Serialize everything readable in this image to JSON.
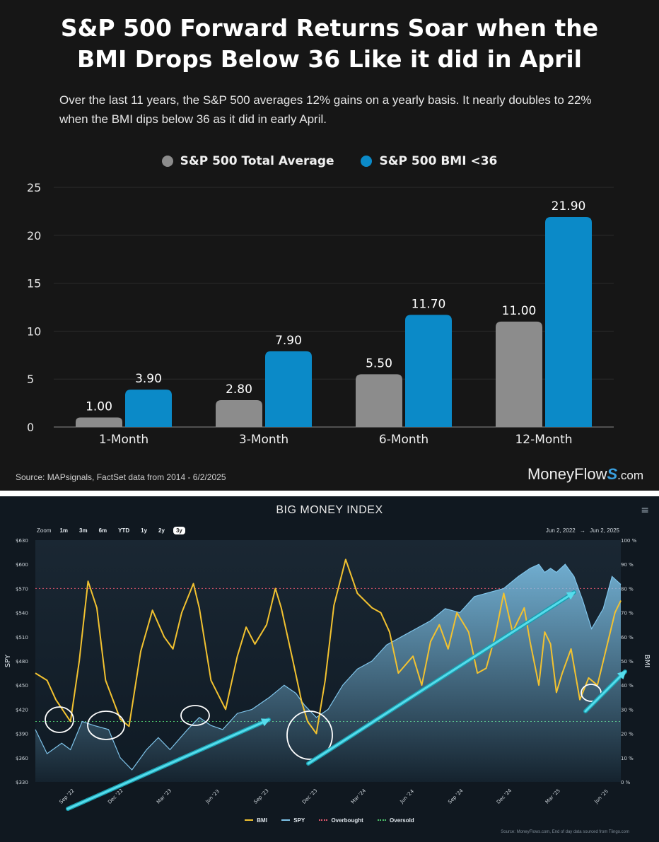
{
  "panel1": {
    "title_line1": "S&P 500 Forward Returns Soar when the",
    "title_line2": "BMI Drops Below 36 Like it did in April",
    "subtitle": "Over the last 11 years, the S&P 500 averages 12% gains on a yearly basis. It nearly doubles to 22% when the BMI dips below 36 as it did in early April.",
    "source": "Source: MAPsignals, FactSet data from 2014 - 6/2/2025",
    "brand_main": "MoneyFlow",
    "brand_s": "S",
    "brand_suffix": ".com",
    "colors": {
      "total_average": "#8c8c8c",
      "bmi": "#0b8ac8"
    }
  },
  "chart_data": [
    {
      "type": "bar",
      "categories": [
        "1-Month",
        "3-Month",
        "6-Month",
        "12-Month"
      ],
      "series": [
        {
          "name": "S&P 500 Total Average",
          "values": [
            1.0,
            2.8,
            5.5,
            11.0
          ]
        },
        {
          "name": "S&P 500 BMI <36",
          "values": [
            3.9,
            7.9,
            11.7,
            21.9
          ]
        }
      ],
      "ylim": [
        0,
        25
      ],
      "yticks": [
        0,
        5,
        10,
        15,
        20,
        25
      ],
      "data_labels": [
        [
          "1.00",
          "2.80",
          "5.50",
          "11.00"
        ],
        [
          "3.90",
          "7.90",
          "11.70",
          "21.90"
        ]
      ],
      "grid": true,
      "legend": "top-center"
    },
    {
      "type": "line",
      "title": "BIG MONEY INDEX",
      "x_range": [
        "Jun 2, 2022",
        "Jun 2, 2025"
      ],
      "xticks": [
        "Sep '22",
        "Dec '22",
        "Mar '23",
        "Jun '23",
        "Sep '23",
        "Dec '23",
        "Mar '24",
        "Jun '24",
        "Sep '24",
        "Dec '24",
        "Mar '25",
        "Jun '25"
      ],
      "ylabel_left": "SPY",
      "ylabel_right": "BMI",
      "ylim_left": [
        330,
        630
      ],
      "yticks_left": [
        "$330",
        "$360",
        "$390",
        "$420",
        "$450",
        "$480",
        "$510",
        "$540",
        "$570",
        "$600",
        "$630"
      ],
      "ylim_right": [
        0,
        100
      ],
      "yticks_right": [
        "0 %",
        "10 %",
        "20 %",
        "30 %",
        "40 %",
        "50 %",
        "60 %",
        "70 %",
        "80 %",
        "90 %",
        "100 %"
      ],
      "overbought_level": 80,
      "oversold_level": 25,
      "series": [
        {
          "name": "BMI",
          "color": "#f2c230",
          "t": [
            0,
            0.02,
            0.035,
            0.06,
            0.075,
            0.09,
            0.105,
            0.12,
            0.145,
            0.16,
            0.18,
            0.2,
            0.22,
            0.235,
            0.25,
            0.27,
            0.28,
            0.3,
            0.325,
            0.345,
            0.36,
            0.375,
            0.395,
            0.41,
            0.42,
            0.44,
            0.455,
            0.465,
            0.48,
            0.495,
            0.51,
            0.53,
            0.55,
            0.575,
            0.59,
            0.605,
            0.62,
            0.645,
            0.66,
            0.675,
            0.69,
            0.705,
            0.72,
            0.74,
            0.755,
            0.77,
            0.785,
            0.8,
            0.815,
            0.835,
            0.845,
            0.86,
            0.87,
            0.88,
            0.89,
            0.9,
            0.915,
            0.93,
            0.945,
            0.96,
            0.975,
            0.99,
            1.0
          ],
          "values": [
            45,
            42,
            34,
            25,
            50,
            83,
            72,
            42,
            26,
            23,
            54,
            71,
            60,
            55,
            70,
            82,
            72,
            42,
            30,
            52,
            64,
            57,
            65,
            80,
            72,
            50,
            33,
            25,
            20,
            42,
            73,
            92,
            78,
            72,
            70,
            62,
            45,
            52,
            40,
            58,
            65,
            55,
            70,
            62,
            45,
            47,
            60,
            78,
            62,
            72,
            58,
            40,
            62,
            57,
            37,
            45,
            55,
            34,
            43,
            40,
            55,
            70,
            75
          ]
        },
        {
          "name": "SPY",
          "color": "#7fc4ea",
          "t": [
            0,
            0.02,
            0.045,
            0.06,
            0.08,
            0.1,
            0.125,
            0.145,
            0.165,
            0.19,
            0.21,
            0.23,
            0.26,
            0.28,
            0.3,
            0.32,
            0.345,
            0.37,
            0.4,
            0.425,
            0.445,
            0.46,
            0.48,
            0.5,
            0.525,
            0.55,
            0.575,
            0.6,
            0.625,
            0.65,
            0.675,
            0.7,
            0.725,
            0.75,
            0.775,
            0.8,
            0.825,
            0.845,
            0.86,
            0.87,
            0.88,
            0.89,
            0.905,
            0.92,
            0.935,
            0.95,
            0.97,
            0.985,
            1.0
          ],
          "values": [
            395,
            365,
            378,
            370,
            405,
            400,
            395,
            360,
            345,
            370,
            385,
            370,
            395,
            410,
            400,
            395,
            415,
            420,
            435,
            450,
            440,
            425,
            410,
            420,
            450,
            470,
            480,
            500,
            510,
            520,
            530,
            545,
            540,
            560,
            565,
            570,
            585,
            595,
            600,
            590,
            595,
            590,
            600,
            585,
            555,
            520,
            545,
            585,
            575
          ]
        }
      ],
      "legend": "bottom-center",
      "source": "Source: MoneyFlows.com, End of day data sourced from Tiingo.com",
      "zoom_label": "Zoom",
      "zoom_buttons": [
        "1m",
        "3m",
        "6m",
        "YTD",
        "1y",
        "2y",
        "3y"
      ],
      "zoom_selected": "3y",
      "range_from": "Jun 2, 2022",
      "range_arrow": "→",
      "range_to": "Jun 2, 2025",
      "legend_labels": [
        "BMI",
        "SPY",
        "Overbought",
        "Oversold"
      ],
      "legend_colors": [
        "#f2c230",
        "#7fc4ea",
        "#e0566c",
        "#4cc06a"
      ]
    }
  ]
}
